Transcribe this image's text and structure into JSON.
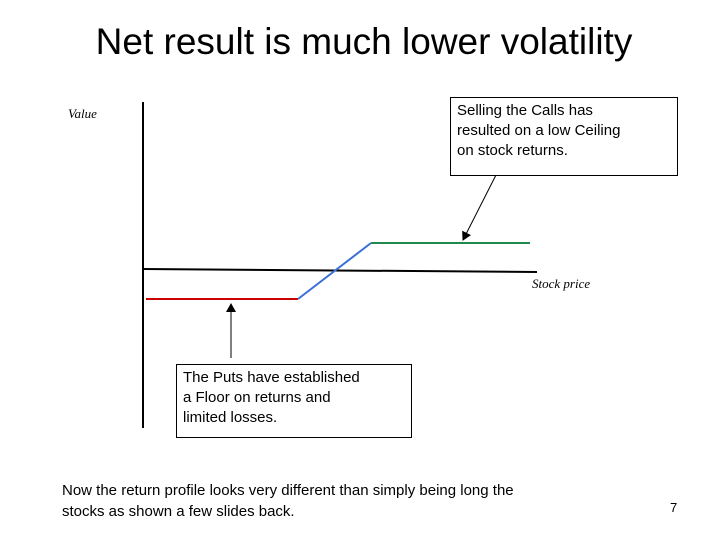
{
  "slide": {
    "title": "Net result is much lower volatility",
    "page_number": "7"
  },
  "diagram": {
    "y_axis_label": "Value",
    "x_axis_label": "Stock price",
    "colors": {
      "floor_segment": "#cc0000",
      "slope_segment": "#3a6fd6",
      "ceiling_segment": "#1f8a4c",
      "axis": "#000000"
    },
    "callout_calls": {
      "lines": [
        "Selling the Calls has",
        "resulted on a low Ceiling",
        "on stock returns."
      ]
    },
    "callout_puts": {
      "lines": [
        "The Puts have established",
        "a Floor on returns and",
        "limited losses."
      ]
    }
  },
  "footer": {
    "lines": [
      "Now the return profile looks very different than simply being long the",
      "stocks as shown a few slides back."
    ]
  }
}
